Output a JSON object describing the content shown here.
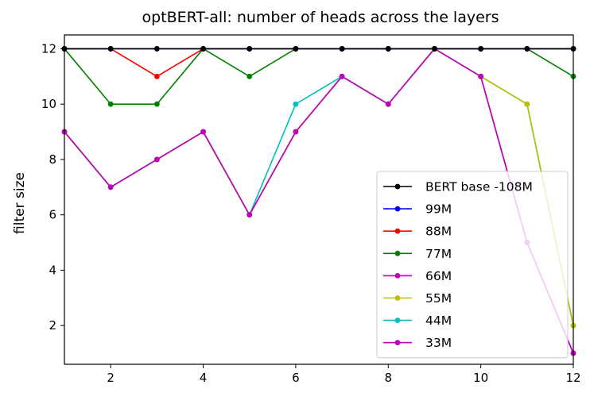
{
  "chart_data": {
    "type": "line",
    "title": "optBERT-all: number of heads across the layers",
    "xlabel": "",
    "ylabel": "filter size",
    "xlim": [
      1,
      12
    ],
    "ylim": [
      0.6,
      12.5
    ],
    "xticks": [
      2,
      4,
      6,
      8,
      10,
      12
    ],
    "yticks": [
      2,
      4,
      6,
      8,
      10,
      12
    ],
    "grid": false,
    "legend_position": "lower-right",
    "x": [
      1,
      2,
      3,
      4,
      5,
      6,
      7,
      8,
      9,
      10,
      11,
      12
    ],
    "series": [
      {
        "name": "BERT base -108M",
        "color": "#000000",
        "values": [
          12,
          12,
          12,
          12,
          12,
          12,
          12,
          12,
          12,
          12,
          12,
          12
        ]
      },
      {
        "name": "99M",
        "color": "#0000ff",
        "values": [
          12,
          12,
          12,
          12,
          12,
          12,
          12,
          12,
          12,
          12,
          12,
          12
        ]
      },
      {
        "name": "88M",
        "color": "#ff0000",
        "values": [
          12,
          12,
          11,
          12,
          12,
          12,
          12,
          12,
          12,
          12,
          12,
          12
        ]
      },
      {
        "name": "77M",
        "color": "#008000",
        "values": [
          12,
          10,
          10,
          12,
          11,
          12,
          12,
          12,
          12,
          12,
          12,
          11
        ]
      },
      {
        "name": "66M",
        "color": "#bf00bf",
        "values": [
          9,
          7,
          8,
          9,
          6,
          9,
          11,
          10,
          12,
          11,
          5,
          1
        ]
      },
      {
        "name": "55M",
        "color": "#bfbf00",
        "values": [
          9,
          7,
          8,
          9,
          6,
          9,
          11,
          10,
          12,
          11,
          10,
          2
        ]
      },
      {
        "name": "44M",
        "color": "#00bfbf",
        "values": [
          9,
          7,
          8,
          9,
          6,
          10,
          11,
          10,
          12,
          11,
          10,
          2
        ]
      },
      {
        "name": "33M",
        "color": "#bf00bf",
        "values": [
          9,
          7,
          8,
          9,
          6,
          9,
          11,
          10,
          12,
          11,
          5,
          1
        ]
      }
    ]
  }
}
